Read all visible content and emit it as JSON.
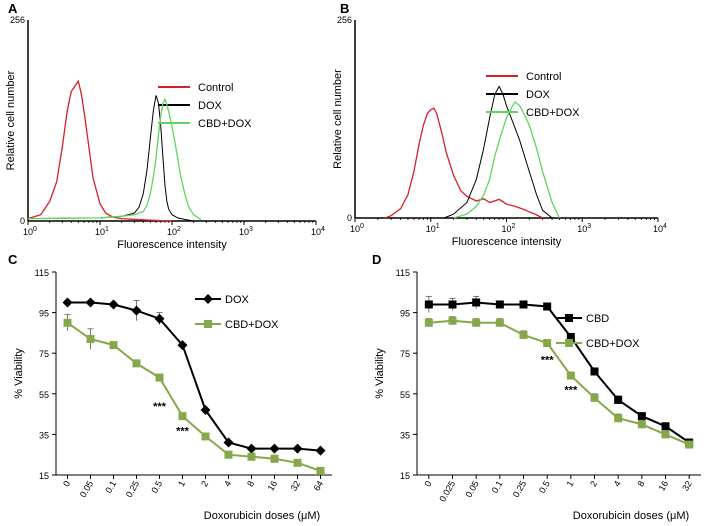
{
  "chart_data": [
    {
      "panel": "A",
      "type": "line",
      "title": "",
      "xlabel": "Fluorescence intensity",
      "ylabel": "Relative cell number",
      "xscale": "log",
      "xlim": [
        1,
        10000
      ],
      "ylim": [
        0,
        256
      ],
      "x_ticks": [
        {
          "value": 1,
          "base": "10",
          "exp": "0"
        },
        {
          "value": 10,
          "base": "10",
          "exp": "1"
        },
        {
          "value": 100,
          "base": "10",
          "exp": "2"
        },
        {
          "value": 1000,
          "base": "10",
          "exp": "3"
        },
        {
          "value": 10000,
          "base": "10",
          "exp": "4"
        }
      ],
      "y_ticks": [
        {
          "value": 0,
          "label": "0"
        },
        {
          "value": 256,
          "label": "256"
        }
      ],
      "legend_position": "top-right",
      "series": [
        {
          "name": "Control",
          "color": "#d42027",
          "x": [
            1,
            1.5,
            2,
            2.5,
            3,
            3.5,
            4,
            4.5,
            5,
            5.5,
            6,
            7,
            8,
            10,
            12,
            15,
            20,
            30,
            50,
            100
          ],
          "y": [
            3,
            8,
            25,
            50,
            95,
            140,
            165,
            172,
            178,
            162,
            140,
            95,
            55,
            22,
            10,
            5,
            3,
            2,
            1,
            0
          ]
        },
        {
          "name": "DOX",
          "color": "#000000",
          "x": [
            1,
            10,
            20,
            30,
            35,
            40,
            45,
            50,
            55,
            60,
            65,
            70,
            75,
            80,
            85,
            90,
            100,
            120,
            150,
            200
          ],
          "y": [
            3,
            4,
            6,
            10,
            18,
            35,
            65,
            105,
            140,
            160,
            150,
            120,
            80,
            45,
            25,
            15,
            8,
            4,
            2,
            0
          ]
        },
        {
          "name": "CBD+DOX",
          "color": "#5fd35f",
          "x": [
            1,
            10,
            20,
            30,
            40,
            45,
            50,
            55,
            60,
            65,
            70,
            75,
            80,
            85,
            90,
            100,
            110,
            120,
            130,
            150,
            170,
            200,
            250
          ],
          "y": [
            3,
            4,
            6,
            8,
            12,
            20,
            35,
            55,
            80,
            110,
            135,
            150,
            155,
            148,
            140,
            120,
            100,
            80,
            60,
            35,
            18,
            8,
            2
          ]
        }
      ]
    },
    {
      "panel": "B",
      "type": "line",
      "title": "",
      "xlabel": "Fluorescence intensity",
      "ylabel": "Relative cell number",
      "xscale": "log",
      "xlim": [
        1,
        10000
      ],
      "ylim": [
        0,
        256
      ],
      "x_ticks": [
        {
          "value": 1,
          "base": "10",
          "exp": "0"
        },
        {
          "value": 10,
          "base": "10",
          "exp": "1"
        },
        {
          "value": 100,
          "base": "10",
          "exp": "2"
        },
        {
          "value": 1000,
          "base": "10",
          "exp": "3"
        },
        {
          "value": 10000,
          "base": "10",
          "exp": "4"
        }
      ],
      "y_ticks": [
        {
          "value": 0,
          "label": "0"
        },
        {
          "value": 256,
          "label": "256"
        }
      ],
      "legend_position": "top-right",
      "series": [
        {
          "name": "Control",
          "color": "#d42027",
          "x": [
            2.5,
            3,
            4,
            5,
            6,
            7,
            8,
            9,
            10,
            11,
            12,
            14,
            16,
            20,
            25,
            30,
            40,
            50,
            60,
            80,
            100,
            130,
            160,
            200,
            250,
            300
          ],
          "y": [
            0,
            3,
            12,
            30,
            60,
            95,
            120,
            135,
            140,
            142,
            135,
            110,
            85,
            55,
            35,
            28,
            22,
            25,
            20,
            24,
            18,
            15,
            12,
            8,
            4,
            0
          ]
        },
        {
          "name": "DOX",
          "color": "#000000",
          "x": [
            15,
            20,
            30,
            40,
            50,
            60,
            70,
            80,
            90,
            100,
            120,
            150,
            200,
            250,
            300,
            400
          ],
          "y": [
            0,
            5,
            20,
            50,
            90,
            130,
            160,
            170,
            160,
            145,
            125,
            100,
            60,
            30,
            10,
            0
          ]
        },
        {
          "name": "CBD+DOX",
          "color": "#5fd35f",
          "x": [
            20,
            30,
            40,
            50,
            60,
            70,
            80,
            100,
            120,
            130,
            150,
            180,
            200,
            250,
            300,
            400,
            500
          ],
          "y": [
            0,
            5,
            15,
            30,
            50,
            80,
            100,
            130,
            145,
            150,
            145,
            130,
            120,
            90,
            60,
            20,
            0
          ]
        }
      ]
    },
    {
      "panel": "C",
      "type": "line",
      "title": "",
      "xlabel": "Doxorubicin doses (μM)",
      "ylabel": "% Viability",
      "ylim": [
        15,
        115
      ],
      "y_ticks": [
        "15",
        "35",
        "55",
        "75",
        "95",
        "115"
      ],
      "categories": [
        "0",
        "0.05",
        "0.1",
        "0.25",
        "0.5",
        "1",
        "2",
        "4",
        "8",
        "16",
        "32",
        "64"
      ],
      "legend_position": "top-right",
      "series": [
        {
          "name": "DOX",
          "color": "#000000",
          "marker": "diamond",
          "values": [
            100,
            100,
            99,
            96,
            92,
            79,
            47,
            31,
            28,
            28,
            28,
            27
          ],
          "errors": [
            1,
            1,
            1,
            5,
            3,
            0,
            0,
            0,
            0,
            0,
            0,
            0
          ]
        },
        {
          "name": "CBD+DOX",
          "color": "#86a84a",
          "marker": "square",
          "values": [
            90,
            82,
            79,
            70,
            63,
            44,
            34,
            25,
            24,
            23,
            21,
            17
          ],
          "errors": [
            4,
            5,
            0,
            0,
            0,
            0,
            0,
            0,
            0,
            0,
            0,
            0
          ]
        }
      ],
      "annotations": [
        {
          "text": "***",
          "category": "0.5",
          "y": 49
        },
        {
          "text": "***",
          "category": "1",
          "y": 37
        }
      ]
    },
    {
      "panel": "D",
      "type": "line",
      "title": "",
      "xlabel": "Doxorubicin doses (μM)",
      "ylabel": "% Viability",
      "ylim": [
        15,
        115
      ],
      "y_ticks": [
        "15",
        "35",
        "55",
        "75",
        "95",
        "115"
      ],
      "categories": [
        "0",
        "0.025",
        "0.05",
        "0.1",
        "0.25",
        "0.5",
        "1",
        "2",
        "4",
        "8",
        "16",
        "32"
      ],
      "legend_position": "top-right",
      "series": [
        {
          "name": "CBD",
          "color": "#000000",
          "marker": "square",
          "values": [
            99,
            99,
            100,
            99,
            99,
            98,
            83,
            66,
            52,
            44,
            39,
            31
          ],
          "errors": [
            4,
            3,
            3,
            1,
            1,
            0,
            0,
            0,
            2,
            0,
            0,
            0
          ]
        },
        {
          "name": "CBD+DOX",
          "color": "#86a84a",
          "marker": "square",
          "values": [
            90,
            91,
            90,
            90,
            84,
            80,
            64,
            53,
            43,
            40,
            35,
            30
          ],
          "errors": [
            2,
            2,
            2,
            2,
            2,
            0,
            0,
            2,
            2,
            2,
            0,
            0
          ]
        }
      ],
      "annotations": [
        {
          "text": "***",
          "category": "0.5",
          "y": 72
        },
        {
          "text": "***",
          "category": "1",
          "y": 57
        }
      ]
    }
  ]
}
